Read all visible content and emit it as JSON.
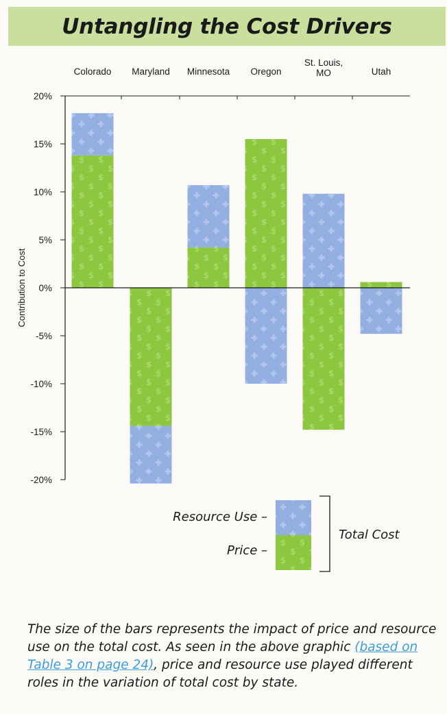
{
  "title": "Untangling the Cost Drivers",
  "chart_data": {
    "type": "bar",
    "stacked": true,
    "categories": [
      "Colorado",
      "Maryland",
      "Minnesota",
      "Oregon",
      "St. Louis, MO",
      "Utah"
    ],
    "series": [
      {
        "name": "Price",
        "values": [
          13.8,
          -14.4,
          4.2,
          15.5,
          -14.8,
          0.6
        ]
      },
      {
        "name": "Resource Use",
        "values": [
          4.4,
          -6.0,
          6.5,
          -10.0,
          9.8,
          -4.8
        ]
      }
    ],
    "ylabel": "Contribution to Cost",
    "ylim": [
      -20,
      20
    ],
    "yticks": [
      "20%",
      "15%",
      "10%",
      "5%",
      "0%",
      "-5%",
      "-10%",
      "-15%",
      "-20%"
    ],
    "legend": {
      "resource_label": "Resource Use –",
      "price_label": "Price –",
      "total_label": "Total Cost",
      "placement": "bottom"
    },
    "colors": {
      "price": "#8dc63f",
      "resource": "#93aee0"
    }
  },
  "caption": {
    "text_before": "The size of the bars represents the impact of price and resource use on the total cost. As seen in the above graphic ",
    "link_text": "(based on Table 3 on page 24)",
    "text_after": ", price and resource use played different roles in the variation of total cost by state."
  }
}
